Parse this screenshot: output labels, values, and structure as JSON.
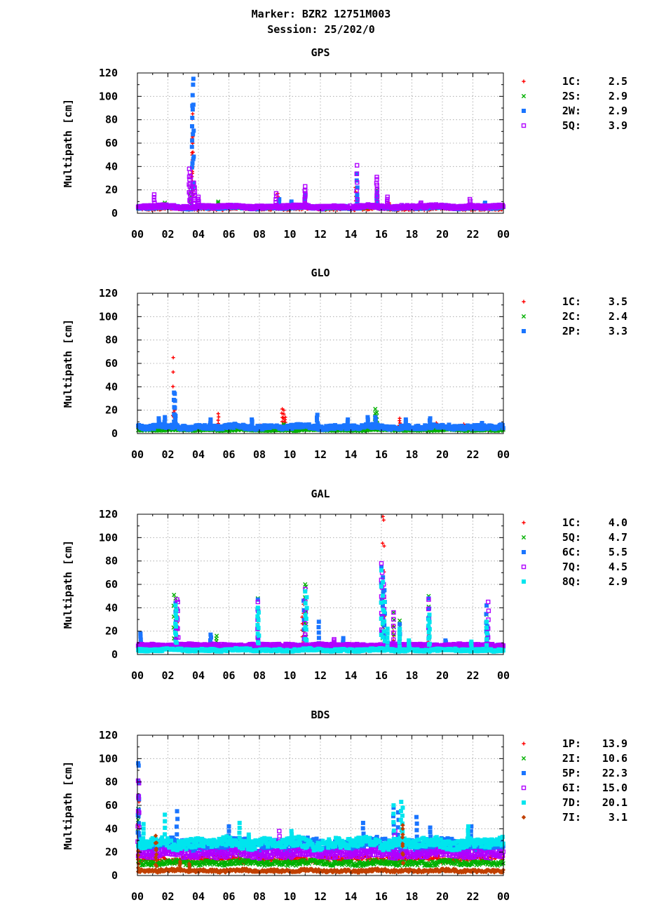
{
  "header": {
    "marker_line": "Marker: BZR2 12751M003",
    "session_line": "Session: 25/202/0"
  },
  "chart_data": [
    {
      "type": "scatter",
      "title": "GPS",
      "xlabel": "",
      "ylabel": "Multipath [cm]",
      "xlim": [
        0,
        24
      ],
      "ylim": [
        0,
        120
      ],
      "xticks": [
        "00",
        "02",
        "04",
        "06",
        "08",
        "10",
        "12",
        "14",
        "16",
        "18",
        "20",
        "22",
        "00"
      ],
      "yticks": [
        "0",
        "20",
        "40",
        "60",
        "80",
        "100",
        "120"
      ],
      "grid": true,
      "legend_position": "right",
      "series": [
        {
          "name": "1C",
          "stat": "2.5",
          "marker": "plus",
          "color": "#ff0000",
          "base": 3,
          "noise": 2,
          "spikes": [
            [
              3.6,
              64
            ],
            [
              3.6,
              74
            ],
            [
              3.6,
              81
            ],
            [
              3.62,
              85
            ],
            [
              9.2,
              17
            ],
            [
              14.3,
              22
            ],
            [
              15.7,
              12
            ],
            [
              16.5,
              9
            ]
          ]
        },
        {
          "name": "2S",
          "stat": "2.9",
          "marker": "cross",
          "color": "#00b000",
          "base": 4,
          "noise": 2,
          "spikes": [
            [
              1.8,
              9
            ],
            [
              3.5,
              22
            ],
            [
              5.3,
              10
            ],
            [
              15.7,
              20
            ],
            [
              19.8,
              6
            ]
          ]
        },
        {
          "name": "2W",
          "stat": "2.9",
          "marker": "square",
          "color": "#1a75ff",
          "base": 4,
          "noise": 2.5,
          "spikes": [
            [
              3.6,
              92
            ],
            [
              3.62,
              101
            ],
            [
              3.65,
              110
            ],
            [
              3.67,
              115
            ],
            [
              9.3,
              12
            ],
            [
              10.1,
              10
            ],
            [
              11,
              17
            ],
            [
              14.4,
              34
            ],
            [
              14.4,
              14
            ],
            [
              15.7,
              18
            ],
            [
              22.8,
              9
            ]
          ]
        },
        {
          "name": "5Q",
          "stat": "3.9",
          "marker": "open-square",
          "color": "#b000ff",
          "base": 4.5,
          "noise": 2.5,
          "spikes": [
            [
              1.1,
              16
            ],
            [
              3.4,
              38
            ],
            [
              3.45,
              35
            ],
            [
              3.5,
              31
            ],
            [
              3.7,
              26
            ],
            [
              3.75,
              22
            ],
            [
              4,
              14
            ],
            [
              9.1,
              17
            ],
            [
              11,
              23
            ],
            [
              11,
              20
            ],
            [
              14.4,
              41
            ],
            [
              15.7,
              31
            ],
            [
              15.7,
              29
            ],
            [
              16.4,
              14
            ],
            [
              18.6,
              9
            ],
            [
              21.8,
              12
            ]
          ]
        }
      ]
    },
    {
      "type": "scatter",
      "title": "GLO",
      "xlabel": "",
      "ylabel": "Multipath [cm]",
      "xlim": [
        0,
        24
      ],
      "ylim": [
        0,
        120
      ],
      "xticks": [
        "00",
        "02",
        "04",
        "06",
        "08",
        "10",
        "12",
        "14",
        "16",
        "18",
        "20",
        "22",
        "00"
      ],
      "yticks": [
        "0",
        "20",
        "40",
        "60",
        "80",
        "100",
        "120"
      ],
      "grid": true,
      "legend_position": "right",
      "series": [
        {
          "name": "1C",
          "stat": "3.5",
          "marker": "plus",
          "color": "#ff0000",
          "base": 3,
          "noise": 2,
          "spikes": [
            [
              2.35,
              65
            ],
            [
              2.4,
              22
            ],
            [
              2.45,
              20
            ],
            [
              5.3,
              17
            ],
            [
              8.1,
              7
            ],
            [
              9.5,
              21
            ],
            [
              9.6,
              20
            ],
            [
              9.7,
              14
            ],
            [
              15.2,
              7
            ],
            [
              17.2,
              13
            ],
            [
              17.6,
              10
            ],
            [
              19.6,
              9
            ],
            [
              21.4,
              8
            ]
          ]
        },
        {
          "name": "2C",
          "stat": "2.4",
          "marker": "cross",
          "color": "#00b000",
          "base": 2.5,
          "noise": 1.5,
          "spikes": [
            [
              2.4,
              10
            ],
            [
              9.6,
              8
            ],
            [
              15.6,
              21
            ],
            [
              15.7,
              18
            ]
          ]
        },
        {
          "name": "2P",
          "stat": "3.3",
          "marker": "square",
          "color": "#1a75ff",
          "base": 4,
          "noise": 3.5,
          "spikes": [
            [
              1.4,
              13
            ],
            [
              1.8,
              14
            ],
            [
              2.4,
              35
            ],
            [
              2.45,
              34
            ],
            [
              2.5,
              15
            ],
            [
              4.8,
              12
            ],
            [
              7.5,
              12
            ],
            [
              11.8,
              16
            ],
            [
              13.8,
              12
            ],
            [
              15.1,
              14
            ],
            [
              15.6,
              14
            ],
            [
              17.6,
              12
            ],
            [
              19.2,
              13
            ],
            [
              22.6,
              9
            ]
          ]
        }
      ]
    },
    {
      "type": "scatter",
      "title": "GAL",
      "xlabel": "",
      "ylabel": "Multipath [cm]",
      "xlim": [
        0,
        24
      ],
      "ylim": [
        0,
        120
      ],
      "xticks": [
        "00",
        "02",
        "04",
        "06",
        "08",
        "10",
        "12",
        "14",
        "16",
        "18",
        "20",
        "22",
        "00"
      ],
      "yticks": [
        "0",
        "20",
        "40",
        "60",
        "80",
        "100",
        "120"
      ],
      "grid": true,
      "legend_position": "right",
      "series": [
        {
          "name": "1C",
          "stat": "4.0",
          "marker": "plus",
          "color": "#ff0000",
          "base": 4,
          "noise": 2,
          "spikes": [
            [
              2.6,
              33
            ],
            [
              2.5,
              30
            ],
            [
              7.9,
              26
            ],
            [
              10.8,
              32
            ],
            [
              10.9,
              43
            ],
            [
              16.1,
              118
            ],
            [
              16.15,
              115
            ],
            [
              16.2,
              40
            ],
            [
              16.8,
              24
            ],
            [
              19.1,
              21
            ]
          ]
        },
        {
          "name": "5Q",
          "stat": "4.7",
          "marker": "cross",
          "color": "#00b000",
          "base": 4.5,
          "noise": 2,
          "spikes": [
            [
              2.4,
              51
            ],
            [
              2.5,
              48
            ],
            [
              5.2,
              16
            ],
            [
              7.9,
              48
            ],
            [
              11,
              60
            ],
            [
              11.05,
              58
            ],
            [
              16.1,
              52
            ],
            [
              16.8,
              36
            ],
            [
              17.2,
              29
            ],
            [
              19.1,
              50
            ],
            [
              22.9,
              34
            ],
            [
              23.1,
              6
            ]
          ]
        },
        {
          "name": "6C",
          "stat": "5.5",
          "marker": "square",
          "color": "#1a75ff",
          "base": 5,
          "noise": 3,
          "spikes": [
            [
              0.2,
              18
            ],
            [
              2.5,
              44
            ],
            [
              4.8,
              17
            ],
            [
              7.9,
              47
            ],
            [
              10.9,
              46
            ],
            [
              11.9,
              28
            ],
            [
              13.5,
              14
            ],
            [
              16,
              75
            ],
            [
              16.1,
              66
            ],
            [
              16.2,
              55
            ],
            [
              17.2,
              26
            ],
            [
              19.1,
              48
            ],
            [
              20.2,
              12
            ],
            [
              22.9,
              42
            ],
            [
              22.95,
              24
            ]
          ]
        },
        {
          "name": "7Q",
          "stat": "4.5",
          "marker": "open-square",
          "color": "#b000ff",
          "base": 7,
          "noise": 2,
          "spikes": [
            [
              2.6,
              47
            ],
            [
              2.65,
              45
            ],
            [
              7.9,
              45
            ],
            [
              11,
              56
            ],
            [
              11,
              17
            ],
            [
              12.9,
              13
            ],
            [
              16,
              78
            ],
            [
              16.05,
              70
            ],
            [
              16.15,
              60
            ],
            [
              16.8,
              36
            ],
            [
              19.1,
              47
            ],
            [
              23,
              45
            ]
          ]
        },
        {
          "name": "8Q",
          "stat": "2.9",
          "marker": "square",
          "color": "#00e5ee",
          "base": 3,
          "noise": 2,
          "spikes": [
            [
              2.5,
              42
            ],
            [
              2.55,
              38
            ],
            [
              7.9,
              40
            ],
            [
              7.95,
              36
            ],
            [
              11,
              54
            ],
            [
              11.1,
              49
            ],
            [
              16,
              72
            ],
            [
              16.1,
              62
            ],
            [
              16.2,
              45
            ],
            [
              16.4,
              22
            ],
            [
              17.2,
              22
            ],
            [
              17.8,
              12
            ],
            [
              19.1,
              30
            ],
            [
              19.15,
              34
            ],
            [
              21.9,
              11
            ],
            [
              22.9,
              28
            ]
          ]
        }
      ]
    },
    {
      "type": "scatter",
      "title": "BDS",
      "xlabel": "",
      "ylabel": "Multipath [cm]",
      "xlim": [
        0,
        24
      ],
      "ylim": [
        0,
        120
      ],
      "xticks": [
        "00",
        "02",
        "04",
        "06",
        "08",
        "10",
        "12",
        "14",
        "16",
        "18",
        "20",
        "22",
        "00"
      ],
      "yticks": [
        "0",
        "20",
        "40",
        "60",
        "80",
        "100",
        "120"
      ],
      "grid": true,
      "legend_position": "right",
      "series": [
        {
          "name": "1P",
          "stat": "13.9",
          "marker": "plus",
          "color": "#ff0000",
          "base": 12,
          "noise": 5,
          "spikes": [
            [
              0.05,
              66
            ],
            [
              0.1,
              63
            ],
            [
              17.3,
              55
            ]
          ]
        },
        {
          "name": "2I",
          "stat": "10.6",
          "marker": "cross",
          "color": "#00b000",
          "base": 9,
          "noise": 4,
          "spikes": [
            [
              0.05,
              57
            ],
            [
              0.1,
              53
            ],
            [
              6.7,
              26
            ],
            [
              9.9,
              16
            ],
            [
              16.9,
              14
            ]
          ]
        },
        {
          "name": "5P",
          "stat": "22.3",
          "marker": "square",
          "color": "#1a75ff",
          "base": 22,
          "noise": 9,
          "spikes": [
            [
              0.05,
              96
            ],
            [
              0.08,
              94
            ],
            [
              0.1,
              79
            ],
            [
              2.6,
              55
            ],
            [
              6,
              42
            ],
            [
              14.8,
              45
            ],
            [
              16.8,
              58
            ],
            [
              17.1,
              54
            ],
            [
              18.3,
              50
            ],
            [
              19.2,
              41
            ],
            [
              21.9,
              42
            ]
          ]
        },
        {
          "name": "6I",
          "stat": "15.0",
          "marker": "open-square",
          "color": "#b000ff",
          "base": 16,
          "noise": 6,
          "spikes": [
            [
              0.05,
              81
            ],
            [
              0.1,
              79
            ],
            [
              9.3,
              38
            ],
            [
              16.9,
              38
            ]
          ]
        },
        {
          "name": "7D",
          "stat": "20.1",
          "marker": "square",
          "color": "#00e5ee",
          "base": 24,
          "noise": 8,
          "spikes": [
            [
              0.4,
              44
            ],
            [
              1.8,
              52
            ],
            [
              6.7,
              45
            ],
            [
              7.3,
              35
            ],
            [
              10.1,
              38
            ],
            [
              16.8,
              60
            ],
            [
              17.3,
              63
            ],
            [
              17.4,
              58
            ],
            [
              21.7,
              42
            ]
          ]
        },
        {
          "name": "7I",
          "stat": "3.1",
          "marker": "diamond",
          "color": "#c04000",
          "base": 3,
          "noise": 2.5,
          "spikes": [
            [
              0.05,
              21
            ],
            [
              1.2,
              34
            ],
            [
              1.25,
              28
            ],
            [
              2.8,
              12
            ],
            [
              3.4,
              10
            ],
            [
              17.4,
              43
            ],
            [
              17.4,
              40
            ]
          ]
        }
      ]
    }
  ]
}
